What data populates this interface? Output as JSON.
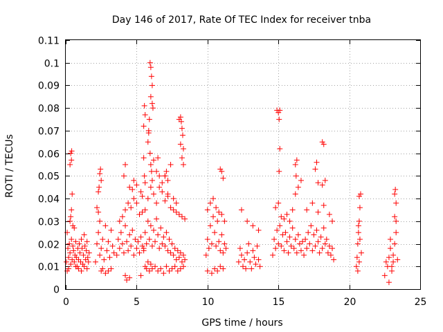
{
  "chart_data": {
    "type": "scatter",
    "title": "Day 146 of 2017, Rate Of TEC Index for receiver tnba",
    "xlabel": "GPS time / hours",
    "ylabel": "ROTI / TECUs",
    "xlim": [
      0,
      25
    ],
    "ylim": [
      0,
      0.11
    ],
    "xticks": [
      0,
      5,
      10,
      15,
      20,
      25
    ],
    "xtick_labels": [
      "0",
      "5",
      "10",
      "15",
      "20",
      "25"
    ],
    "yticks": [
      0,
      0.01,
      0.02,
      0.03,
      0.04,
      0.05,
      0.06,
      0.07,
      0.08,
      0.09,
      0.1,
      0.11
    ],
    "ytick_labels": [
      "0",
      "0.01",
      "0.02",
      "0.03",
      "0.04",
      "0.05",
      "0.06",
      "0.07",
      "0.08",
      "0.09",
      "0.1",
      "0.11"
    ],
    "grid": true,
    "marker": "+",
    "color": "#ff0000",
    "series": [
      {
        "x": [
          0.05,
          0.1,
          0.15,
          0.2,
          0.25,
          0.3,
          0.35,
          0.4,
          0.45,
          0.5,
          0.55,
          0.6,
          0.65,
          0.7,
          0.75,
          0.8,
          0.85,
          0.9,
          0.95,
          1.0,
          1.05,
          1.1,
          1.15,
          1.2,
          1.25,
          1.3,
          1.35,
          1.4,
          1.45,
          1.5,
          1.55,
          1.6,
          1.65,
          0.1,
          0.2,
          0.3,
          0.35,
          0.4,
          0.5,
          0.6,
          0.7,
          0.9,
          1.1,
          1.3,
          1.5,
          0.3,
          0.35,
          0.4,
          0.42,
          0.45,
          2.1,
          2.2,
          2.3,
          2.4,
          2.5,
          2.6,
          2.7,
          2.8,
          2.9,
          3.0,
          3.1,
          3.2,
          3.3,
          3.4,
          2.2,
          2.3,
          2.4,
          2.5,
          2.6,
          2.8,
          3.0,
          3.2,
          2.3,
          2.35,
          2.4,
          2.45,
          2.5,
          3.6,
          3.7,
          3.8,
          3.9,
          4.0,
          4.1,
          4.2,
          4.3,
          4.4,
          4.5,
          4.6,
          4.7,
          4.8,
          4.9,
          5.0,
          5.1,
          5.2,
          5.3,
          5.4,
          5.5,
          3.8,
          4.0,
          4.2,
          4.4,
          4.6,
          4.8,
          5.0,
          5.2,
          5.4,
          4.1,
          4.2,
          4.5,
          4.7,
          4.8,
          5.0,
          5.3,
          5.4,
          4.2,
          4.3,
          4.5,
          5.3,
          5.5,
          5.6,
          5.7,
          5.8,
          5.9,
          6.0,
          6.1,
          6.2,
          6.3,
          6.4,
          6.5,
          6.6,
          6.7,
          6.8,
          6.9,
          7.0,
          7.1,
          7.2,
          7.3,
          7.4,
          7.5,
          7.6,
          7.7,
          7.8,
          7.9,
          8.0,
          8.1,
          8.2,
          8.3,
          8.4,
          5.6,
          5.8,
          6.0,
          6.2,
          6.4,
          6.6,
          6.8,
          7.0,
          7.2,
          7.4,
          7.6,
          7.8,
          8.0,
          8.2,
          8.4,
          5.6,
          5.7,
          5.8,
          5.9,
          6.0,
          6.1,
          6.3,
          6.5,
          6.7,
          6.9,
          7.1,
          7.3,
          7.5,
          7.7,
          7.9,
          8.1,
          8.3,
          5.5,
          5.55,
          5.6,
          5.8,
          5.85,
          5.9,
          5.95,
          6.0,
          6.05,
          6.1,
          6.2,
          6.4,
          6.5,
          6.6,
          6.8,
          7.0,
          7.2,
          7.4,
          7.6,
          7.8,
          8.0,
          8.1,
          8.2,
          8.3,
          5.95,
          6.0,
          6.05,
          6.1,
          6.1,
          6.15,
          6.0,
          5.85,
          5.6,
          5.55,
          5.5,
          8.1,
          8.15,
          8.2,
          8.25,
          8.3,
          7.0,
          7.1,
          7.2,
          9.9,
          10.0,
          10.1,
          10.2,
          10.3,
          10.4,
          10.5,
          10.6,
          10.7,
          10.8,
          10.9,
          11.0,
          11.1,
          11.2,
          11.3,
          10.0,
          10.2,
          10.4,
          10.6,
          10.8,
          11.0,
          11.2,
          10.0,
          10.3,
          10.5,
          10.7,
          10.9,
          11.1,
          10.9,
          11.0,
          11.1,
          12.2,
          12.3,
          12.4,
          12.5,
          12.6,
          12.7,
          12.8,
          12.9,
          13.0,
          13.1,
          13.2,
          13.3,
          13.4,
          13.5,
          13.6,
          13.7,
          12.4,
          12.8,
          13.2,
          13.6,
          14.6,
          14.7,
          14.8,
          14.9,
          15.0,
          15.1,
          15.2,
          15.3,
          15.4,
          15.5,
          15.6,
          15.7,
          15.8,
          15.9,
          16.0,
          16.1,
          16.2,
          16.3,
          16.4,
          16.5,
          16.6,
          16.7,
          14.8,
          15.0,
          15.2,
          15.4,
          15.6,
          15.8,
          16.0,
          16.2,
          16.4,
          16.6,
          14.9,
          15.0,
          15.05,
          15.1,
          15.1,
          15.05,
          16.2,
          16.3,
          16.25,
          16.8,
          16.9,
          17.0,
          17.1,
          17.2,
          17.3,
          17.4,
          17.5,
          17.6,
          17.7,
          17.8,
          17.9,
          18.0,
          18.1,
          18.2,
          18.3,
          18.4,
          18.5,
          18.6,
          18.7,
          18.8,
          18.9,
          17.0,
          17.4,
          17.8,
          18.2,
          18.6,
          18.8,
          17.6,
          17.7,
          17.8,
          18.1,
          18.2,
          18.3,
          18.1,
          20.5,
          20.55,
          20.6,
          20.65,
          20.7,
          20.75,
          20.8,
          20.85,
          20.6,
          20.7,
          20.75,
          20.7,
          20.65,
          22.5,
          22.6,
          22.7,
          22.8,
          22.9,
          23.0,
          23.1,
          23.2,
          23.3,
          23.4,
          22.8,
          23.0,
          23.2,
          23.3,
          23.2,
          23.25,
          23.3,
          22.9,
          23.1
        ],
        "y": [
          0.012,
          0.025,
          0.018,
          0.014,
          0.02,
          0.016,
          0.011,
          0.022,
          0.013,
          0.019,
          0.017,
          0.012,
          0.015,
          0.021,
          0.014,
          0.01,
          0.018,
          0.013,
          0.02,
          0.016,
          0.012,
          0.022,
          0.018,
          0.011,
          0.015,
          0.024,
          0.019,
          0.013,
          0.017,
          0.021,
          0.014,
          0.012,
          0.016,
          0.008,
          0.009,
          0.03,
          0.032,
          0.035,
          0.028,
          0.027,
          0.01,
          0.009,
          0.008,
          0.01,
          0.009,
          0.055,
          0.06,
          0.057,
          0.061,
          0.042,
          0.012,
          0.02,
          0.025,
          0.015,
          0.018,
          0.022,
          0.013,
          0.028,
          0.017,
          0.021,
          0.014,
          0.026,
          0.019,
          0.016,
          0.036,
          0.034,
          0.03,
          0.008,
          0.009,
          0.007,
          0.008,
          0.009,
          0.043,
          0.045,
          0.051,
          0.053,
          0.048,
          0.015,
          0.022,
          0.018,
          0.025,
          0.02,
          0.016,
          0.028,
          0.021,
          0.017,
          0.024,
          0.019,
          0.026,
          0.015,
          0.022,
          0.018,
          0.021,
          0.016,
          0.023,
          0.019,
          0.017,
          0.03,
          0.032,
          0.035,
          0.038,
          0.036,
          0.04,
          0.038,
          0.033,
          0.034,
          0.05,
          0.055,
          0.045,
          0.044,
          0.048,
          0.046,
          0.043,
          0.041,
          0.006,
          0.004,
          0.005,
          0.006,
          0.018,
          0.025,
          0.02,
          0.03,
          0.022,
          0.028,
          0.019,
          0.026,
          0.021,
          0.031,
          0.024,
          0.018,
          0.027,
          0.02,
          0.023,
          0.019,
          0.025,
          0.017,
          0.022,
          0.016,
          0.02,
          0.015,
          0.018,
          0.013,
          0.017,
          0.014,
          0.016,
          0.012,
          0.015,
          0.013,
          0.035,
          0.04,
          0.045,
          0.042,
          0.038,
          0.05,
          0.043,
          0.039,
          0.041,
          0.036,
          0.035,
          0.034,
          0.033,
          0.032,
          0.031,
          0.01,
          0.009,
          0.012,
          0.008,
          0.011,
          0.009,
          0.01,
          0.008,
          0.009,
          0.007,
          0.01,
          0.008,
          0.009,
          0.01,
          0.008,
          0.009,
          0.01,
          0.058,
          0.05,
          0.047,
          0.065,
          0.07,
          0.075,
          0.06,
          0.055,
          0.052,
          0.048,
          0.057,
          0.052,
          0.058,
          0.045,
          0.047,
          0.05,
          0.042,
          0.055,
          0.04,
          0.038,
          0.075,
          0.064,
          0.058,
          0.055,
          0.1,
          0.098,
          0.094,
          0.09,
          0.082,
          0.08,
          0.085,
          0.069,
          0.077,
          0.081,
          0.072,
          0.076,
          0.074,
          0.071,
          0.068,
          0.062,
          0.05,
          0.052,
          0.048,
          0.015,
          0.022,
          0.018,
          0.028,
          0.02,
          0.032,
          0.025,
          0.019,
          0.03,
          0.021,
          0.017,
          0.024,
          0.016,
          0.02,
          0.018,
          0.035,
          0.038,
          0.04,
          0.036,
          0.034,
          0.033,
          0.03,
          0.008,
          0.007,
          0.009,
          0.008,
          0.01,
          0.009,
          0.053,
          0.052,
          0.049,
          0.012,
          0.018,
          0.015,
          0.01,
          0.013,
          0.009,
          0.016,
          0.02,
          0.012,
          0.009,
          0.017,
          0.014,
          0.011,
          0.019,
          0.013,
          0.01,
          0.035,
          0.03,
          0.028,
          0.026,
          0.015,
          0.022,
          0.018,
          0.026,
          0.02,
          0.028,
          0.019,
          0.024,
          0.017,
          0.025,
          0.021,
          0.016,
          0.023,
          0.019,
          0.027,
          0.018,
          0.022,
          0.016,
          0.024,
          0.02,
          0.017,
          0.021,
          0.036,
          0.038,
          0.032,
          0.031,
          0.033,
          0.03,
          0.035,
          0.042,
          0.045,
          0.048,
          0.079,
          0.078,
          0.075,
          0.079,
          0.062,
          0.052,
          0.055,
          0.057,
          0.05,
          0.015,
          0.022,
          0.018,
          0.025,
          0.02,
          0.028,
          0.017,
          0.024,
          0.019,
          0.026,
          0.021,
          0.016,
          0.023,
          0.018,
          0.027,
          0.02,
          0.022,
          0.016,
          0.019,
          0.015,
          0.018,
          0.013,
          0.035,
          0.038,
          0.034,
          0.037,
          0.033,
          0.03,
          0.053,
          0.056,
          0.047,
          0.065,
          0.064,
          0.048,
          0.046,
          0.01,
          0.014,
          0.02,
          0.025,
          0.03,
          0.036,
          0.042,
          0.016,
          0.008,
          0.012,
          0.022,
          0.041,
          0.028,
          0.006,
          0.012,
          0.01,
          0.014,
          0.018,
          0.008,
          0.012,
          0.02,
          0.025,
          0.013,
          0.003,
          0.01,
          0.032,
          0.038,
          0.042,
          0.044,
          0.03,
          0.022,
          0.015
        ]
      }
    ]
  }
}
